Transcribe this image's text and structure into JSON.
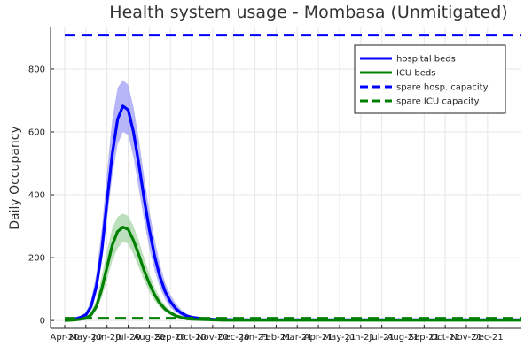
{
  "chart_data": {
    "type": "line",
    "title": "Health system usage - Mombasa (Unmitigated)",
    "xlabel": "",
    "ylabel": "Daily Occupancy",
    "x_tick_labels": [
      "Apr-20",
      "May-20",
      "Jun-20",
      "Jul-20",
      "Aug-20",
      "Sep-20",
      "Oct-20",
      "Nov-20",
      "Dec-20",
      "Jan-21",
      "Feb-21",
      "Mar-21",
      "Apr-21",
      "May-21",
      "Jun-21",
      "Jul-21",
      "Aug-21",
      "Sep-21",
      "Oct-21",
      "Nov-21",
      "Dec-21"
    ],
    "x_tick_labels_visible": [
      "Apr-20",
      "May-20",
      "Jun-20",
      "Jul-20",
      "Aug-20",
      "Sep-20",
      "Oct-20",
      "Nov-20",
      "Dec-20",
      "Jan-21",
      "Feb-21",
      "Mar-21",
      "Apr-21",
      "May-21",
      "Jun-21",
      "Jul-21",
      "Aug-21",
      "Sep-21",
      "Oct-21",
      "Nov-21",
      "Dec-21"
    ],
    "y_ticks": [
      0,
      200,
      400,
      600,
      800
    ],
    "xlim": [
      0,
      21.6
    ],
    "ylim": [
      -25,
      935
    ],
    "grid": true,
    "legend_position": "top-right",
    "x": [
      0,
      0.25,
      0.5,
      0.75,
      1,
      1.25,
      1.5,
      1.75,
      2,
      2.25,
      2.5,
      2.75,
      3,
      3.25,
      3.5,
      3.75,
      4,
      4.25,
      4.5,
      4.75,
      5,
      5.25,
      5.5,
      5.75,
      6,
      6.5,
      7,
      7.5,
      8,
      9,
      10,
      11,
      12,
      13,
      14,
      15,
      16,
      17,
      18,
      19,
      20,
      21,
      21.6
    ],
    "series": [
      {
        "name": "hospital beds",
        "color": "#0000ff",
        "style": "solid",
        "values": [
          1,
          2,
          5,
          10,
          18,
          45,
          110,
          220,
          380,
          530,
          640,
          682,
          670,
          600,
          500,
          390,
          290,
          205,
          140,
          92,
          60,
          38,
          24,
          15,
          10,
          6,
          4,
          3,
          2,
          2,
          2,
          2,
          2,
          2,
          2,
          2,
          2,
          2,
          2,
          2,
          2,
          2,
          2
        ],
        "band_lower": [
          0,
          1,
          3,
          7,
          12,
          32,
          85,
          180,
          320,
          460,
          560,
          600,
          590,
          520,
          420,
          320,
          230,
          160,
          105,
          68,
          42,
          26,
          16,
          10,
          6,
          4,
          3,
          2,
          1,
          1,
          1,
          1,
          1,
          1,
          1,
          1,
          1,
          1,
          1,
          1,
          1,
          1,
          1
        ],
        "band_upper": [
          2,
          3,
          8,
          15,
          25,
          65,
          150,
          290,
          470,
          640,
          740,
          765,
          750,
          680,
          580,
          460,
          350,
          260,
          180,
          120,
          82,
          54,
          35,
          22,
          15,
          9,
          6,
          4,
          3,
          3,
          3,
          3,
          3,
          3,
          3,
          3,
          3,
          3,
          3,
          3,
          3,
          3,
          3
        ],
        "band_color": "#9f9ff5"
      },
      {
        "name": "ICU beds",
        "color": "#008000",
        "style": "solid",
        "values": [
          0,
          1,
          2,
          4,
          7,
          18,
          45,
          100,
          170,
          240,
          283,
          297,
          290,
          255,
          210,
          160,
          118,
          82,
          55,
          36,
          24,
          15,
          10,
          6,
          4,
          3,
          2,
          1,
          1,
          1,
          1,
          1,
          1,
          1,
          1,
          1,
          1,
          1,
          1,
          1,
          1,
          1,
          1
        ],
        "band_lower": [
          0,
          0,
          1,
          2,
          4,
          12,
          32,
          72,
          130,
          190,
          230,
          250,
          245,
          210,
          170,
          128,
          92,
          63,
          42,
          27,
          17,
          11,
          7,
          4,
          3,
          2,
          1,
          1,
          0,
          0,
          0,
          0,
          0,
          0,
          0,
          0,
          0,
          0,
          0,
          0,
          0,
          0,
          0
        ],
        "band_upper": [
          1,
          2,
          4,
          6,
          11,
          28,
          65,
          140,
          220,
          295,
          330,
          340,
          333,
          300,
          255,
          200,
          150,
          106,
          72,
          48,
          32,
          20,
          13,
          8,
          6,
          4,
          3,
          2,
          2,
          2,
          2,
          2,
          2,
          2,
          2,
          2,
          2,
          2,
          2,
          2,
          2,
          2,
          2
        ],
        "band_color": "#a6d6a6"
      },
      {
        "name": "spare hosp. capacity",
        "color": "#0000ff",
        "style": "dashed",
        "constant": 908
      },
      {
        "name": "spare ICU capacity",
        "color": "#008000",
        "style": "dashed",
        "constant": 7
      }
    ]
  }
}
